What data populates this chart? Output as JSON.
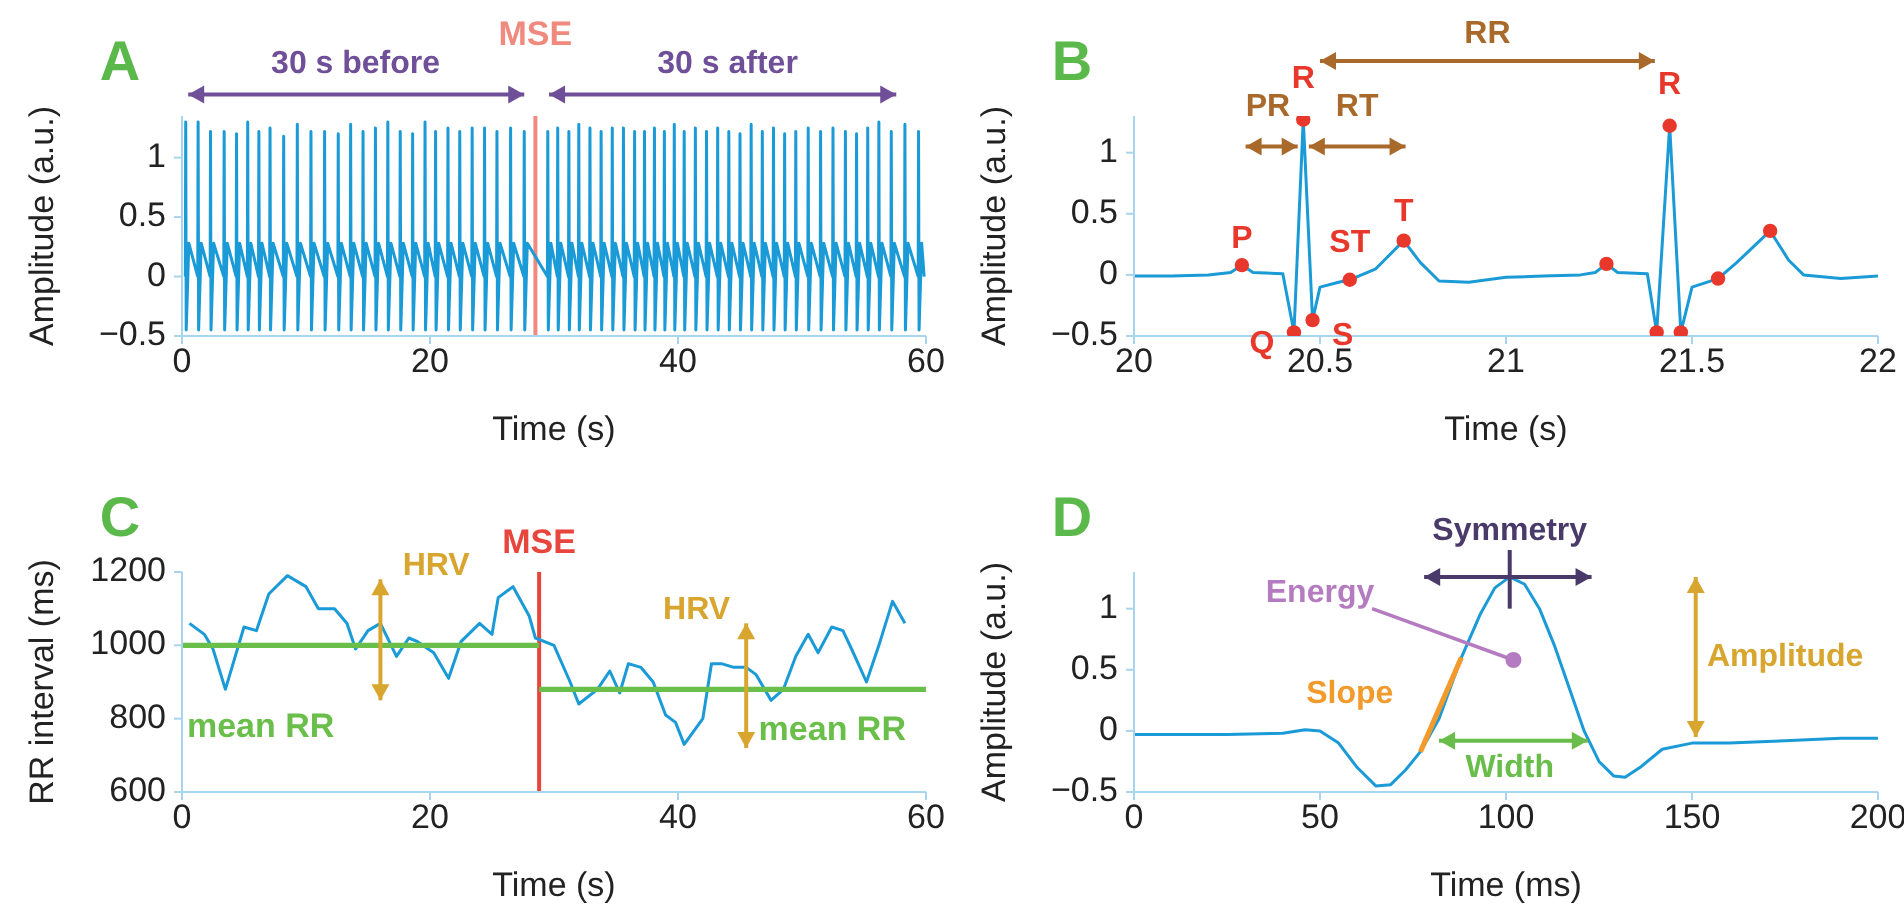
{
  "chart_data": [
    {
      "type": "line",
      "title": "A",
      "xlabel": "Time (s)",
      "ylabel": "Amplitude (a.u.)",
      "xlim": [
        0,
        60
      ],
      "ylim": [
        -0.5,
        1.35
      ],
      "xticks": [
        0,
        20,
        40,
        60
      ],
      "yticks": [
        -0.5,
        0,
        0.5,
        1
      ],
      "series": [
        {
          "color": "#1a9ad6",
          "x": [
            0.27,
            0.3,
            0.34,
            0.55,
            1.27,
            1.3,
            1.34,
            1.55,
            2.27,
            2.3,
            2.34,
            2.55,
            3.37,
            3.4,
            3.44,
            3.65,
            4.37,
            4.4,
            4.44,
            4.65,
            5.27,
            5.3,
            5.34,
            5.55,
            6.17,
            6.2,
            6.24,
            6.45,
            7.07,
            7.1,
            7.14,
            7.35,
            8.17,
            8.2,
            8.24,
            8.45,
            9.27,
            9.3,
            9.34,
            9.55,
            10.37,
            10.4,
            10.44,
            10.65,
            11.47,
            11.5,
            11.54,
            11.75,
            12.57,
            12.6,
            12.64,
            12.85,
            13.57,
            13.6,
            13.64,
            13.85,
            14.57,
            14.6,
            14.64,
            14.85,
            15.57,
            15.6,
            15.64,
            15.85,
            16.57,
            16.6,
            16.64,
            16.85,
            17.57,
            17.6,
            17.64,
            17.85,
            18.57,
            18.6,
            18.64,
            18.85,
            19.57,
            19.6,
            19.64,
            19.85,
            20.42,
            20.45,
            20.49,
            20.7,
            21.42,
            21.45,
            21.49,
            21.7,
            22.37,
            22.4,
            22.44,
            22.65,
            23.37,
            23.4,
            23.44,
            23.65,
            24.37,
            24.4,
            24.44,
            24.65,
            25.37,
            25.4,
            25.44,
            25.65,
            26.47,
            26.5,
            26.54,
            26.75,
            27.57,
            27.6,
            27.64,
            27.85,
            29.47,
            29.5,
            29.54,
            29.75,
            30.27,
            30.3,
            30.34,
            30.55,
            31.17,
            31.2,
            31.24,
            31.45,
            31.97,
            32,
            32.04,
            32.25,
            32.87,
            32.9,
            32.94,
            33.15,
            33.77,
            33.8,
            33.84,
            34.05,
            34.67,
            34.7,
            34.74,
            34.95,
            35.57,
            35.6,
            35.64,
            35.85,
            36.47,
            36.5,
            36.54,
            36.75,
            37.27,
            37.3,
            37.34,
            37.55,
            38.07,
            38.1,
            38.14,
            38.35,
            38.87,
            38.9,
            38.94,
            39.15,
            39.67,
            39.7,
            39.74,
            39.95,
            40.47,
            40.5,
            40.54,
            40.75,
            41.37,
            41.4,
            41.44,
            41.65,
            42.27,
            42.3,
            42.34,
            42.55,
            43.17,
            43.2,
            43.24,
            43.45,
            44.07,
            44.1,
            44.14,
            44.35,
            44.97,
            45,
            45.04,
            45.25,
            45.87,
            45.9,
            45.94,
            46.15,
            46.77,
            46.8,
            46.84,
            47.05,
            47.67,
            47.7,
            47.74,
            47.95,
            48.57,
            48.6,
            48.64,
            48.85,
            49.47,
            49.5,
            49.54,
            49.75,
            50.47,
            50.5,
            50.54,
            50.75,
            51.47,
            51.5,
            51.54,
            51.75,
            52.47,
            52.5,
            52.54,
            52.75,
            53.47,
            53.5,
            53.54,
            53.75,
            54.37,
            54.4,
            54.44,
            54.65,
            55.27,
            55.3,
            55.34,
            55.55,
            56.17,
            56.2,
            56.24,
            56.45,
            57.17,
            57.2,
            57.24,
            57.45,
            58.27,
            58.3,
            58.34,
            58.55,
            59.37,
            59.4,
            59.44,
            59.65,
            59.85
          ],
          "values": [
            0,
            1.3,
            -0.45,
            0.28,
            0,
            1.3,
            -0.45,
            0.28,
            0,
            1.22,
            -0.45,
            0.28,
            0,
            1.22,
            -0.45,
            0.28,
            0,
            1.2,
            -0.45,
            0.28,
            0,
            1.3,
            -0.45,
            0.28,
            0,
            1.22,
            -0.45,
            0.28,
            0,
            1.25,
            -0.45,
            0.28,
            0,
            1.18,
            -0.45,
            0.28,
            0,
            1.28,
            -0.45,
            0.28,
            0,
            1.22,
            -0.45,
            0.28,
            0,
            1.22,
            -0.45,
            0.28,
            0,
            1.2,
            -0.45,
            0.28,
            0,
            1.28,
            -0.45,
            0.28,
            0,
            1.22,
            -0.45,
            0.28,
            0,
            1.25,
            -0.45,
            0.28,
            0,
            1.3,
            -0.45,
            0.28,
            0,
            1.22,
            -0.45,
            0.28,
            0,
            1.2,
            -0.45,
            0.28,
            0,
            1.3,
            -0.45,
            0.28,
            0,
            1.22,
            -0.45,
            0.28,
            0,
            1.25,
            -0.45,
            0.28,
            0,
            1.22,
            -0.45,
            0.28,
            0,
            1.25,
            -0.45,
            0.28,
            0,
            1.25,
            -0.45,
            0.28,
            0,
            1.22,
            -0.45,
            0.28,
            0,
            1.25,
            -0.45,
            0.28,
            0,
            1.22,
            -0.45,
            0.28,
            0,
            1.22,
            -0.45,
            0.28,
            0,
            1.25,
            -0.45,
            0.28,
            0,
            1.22,
            -0.45,
            0.28,
            0,
            1.28,
            -0.45,
            0.28,
            0,
            1.25,
            -0.45,
            0.28,
            0,
            1.22,
            -0.45,
            0.28,
            0,
            1.25,
            -0.45,
            0.28,
            0,
            1.25,
            -0.45,
            0.28,
            0,
            1.22,
            -0.45,
            0.28,
            0,
            1.22,
            -0.45,
            0.28,
            0,
            1.25,
            -0.45,
            0.28,
            0,
            1.22,
            -0.45,
            0.28,
            0,
            1.28,
            -0.45,
            0.28,
            0,
            1.22,
            -0.45,
            0.28,
            0,
            1.25,
            -0.45,
            0.28,
            0,
            1.22,
            -0.45,
            0.28,
            0,
            1.25,
            -0.45,
            0.28,
            0,
            1.22,
            -0.45,
            0.28,
            0,
            1.2,
            -0.45,
            0.28,
            0,
            1.28,
            -0.45,
            0.28,
            0,
            1.22,
            -0.45,
            0.28,
            0,
            1.25,
            -0.45,
            0.28,
            0,
            1.2,
            -0.45,
            0.28,
            0,
            1.22,
            -0.45,
            0.28,
            0,
            1.25,
            -0.45,
            0.28,
            0,
            1.22,
            -0.45,
            0.28,
            0,
            1.25,
            -0.45,
            0.28,
            0,
            1.22,
            -0.45,
            0.28,
            0,
            1.2,
            -0.45,
            0.28,
            0,
            1.25,
            -0.45,
            0.28,
            0,
            1.3,
            -0.45,
            0.28,
            0,
            1.22,
            -0.45,
            0.28,
            0,
            1.28,
            -0.45,
            0.28,
            0,
            1.22,
            -0.45,
            0.28,
            0
          ]
        }
      ],
      "ref_lines": [
        {
          "axis": "x",
          "value": 28.5,
          "label": "MSE",
          "color": "#f08a7e"
        }
      ],
      "annotations": [
        "30 s before",
        "30 s after"
      ]
    },
    {
      "type": "line",
      "title": "B",
      "xlabel": "Time (s)",
      "ylabel": "Amplitude (a.u.)",
      "xlim": [
        20,
        22
      ],
      "ylim": [
        -0.5,
        1.3
      ],
      "xticks": [
        20,
        20.5,
        21,
        21.5,
        22
      ],
      "yticks": [
        -0.5,
        0,
        0.5,
        1
      ],
      "series": [
        {
          "color": "#1a9ad6",
          "x": [
            20,
            20.1,
            20.2,
            20.26,
            20.29,
            20.32,
            20.4,
            20.43,
            20.455,
            20.48,
            20.5,
            20.55,
            20.58,
            20.65,
            20.725,
            20.77,
            20.82,
            20.9,
            21,
            21.1,
            21.2,
            21.24,
            21.27,
            21.3,
            21.38,
            21.405,
            21.44,
            21.47,
            21.5,
            21.57,
            21.62,
            21.71,
            21.76,
            21.8,
            21.9,
            22
          ],
          "values": [
            -0.01,
            -0.01,
            0,
            0.02,
            0.08,
            0.02,
            0.01,
            -0.47,
            1.27,
            -0.37,
            -0.1,
            -0.06,
            -0.04,
            0.05,
            0.28,
            0.1,
            -0.05,
            -0.06,
            -0.02,
            -0.01,
            0,
            0.02,
            0.09,
            0.02,
            0.01,
            -0.47,
            1.22,
            -0.47,
            -0.1,
            -0.03,
            0.1,
            0.36,
            0.12,
            0,
            -0.03,
            -0.01
          ]
        },
        {
          "type": "scatter",
          "color": "#e8382c",
          "x": [
            20.29,
            20.43,
            20.455,
            20.48,
            20.58,
            20.725,
            21.27,
            21.405,
            21.44,
            21.47,
            21.57,
            21.71
          ],
          "values": [
            0.08,
            -0.47,
            1.27,
            -0.37,
            -0.04,
            0.28,
            0.09,
            -0.47,
            1.22,
            -0.47,
            -0.03,
            0.36
          ]
        }
      ],
      "annotations": [
        "PR",
        "RT",
        "RR",
        {
          "text": "P",
          "x": 20.29,
          "y": 0.08
        },
        {
          "text": "Q",
          "x": 20.43,
          "y": -0.47
        },
        {
          "text": "R",
          "x": 20.455,
          "y": 1.27
        },
        {
          "text": "S",
          "x": 20.48,
          "y": -0.37
        },
        {
          "text": "ST",
          "x": 20.58,
          "y": -0.04
        },
        {
          "text": "T",
          "x": 20.725,
          "y": 0.28
        },
        {
          "text": "R",
          "x": 21.44,
          "y": 1.22
        }
      ]
    },
    {
      "type": "line",
      "title": "C",
      "xlabel": "Time (s)",
      "ylabel": "RR interval (ms)",
      "xlim": [
        0,
        60
      ],
      "ylim": [
        600,
        1200
      ],
      "xticks": [
        0,
        20,
        40,
        60
      ],
      "yticks": [
        600,
        800,
        1000,
        1200
      ],
      "series": [
        {
          "color": "#1a9ad6",
          "x": [
            0.6,
            1.8,
            2.5,
            3.5,
            5,
            6,
            7,
            8.5,
            10,
            11,
            12.3,
            13.3,
            14,
            15,
            16,
            17.3,
            18.3,
            19,
            20.3,
            21.5,
            22.5,
            24,
            25,
            25.5,
            26.7,
            28,
            28.5,
            30,
            31.3,
            32,
            33.5,
            34.5,
            35.3,
            36,
            37,
            38,
            39,
            39.8,
            40.5,
            42,
            42.7,
            43.5,
            44.5,
            45.5,
            46.3,
            47.5,
            48.5,
            49.5,
            50.5,
            51.3,
            52.4,
            53.3,
            54,
            55.2,
            56.2,
            57.3,
            58.3
          ],
          "values": [
            1060,
            1030,
            990,
            880,
            1050,
            1040,
            1140,
            1190,
            1160,
            1100,
            1100,
            1060,
            990,
            1040,
            1060,
            970,
            1020,
            1010,
            980,
            910,
            1010,
            1060,
            1030,
            1130,
            1160,
            1080,
            1020,
            1000,
            900,
            840,
            880,
            930,
            870,
            950,
            940,
            900,
            810,
            790,
            730,
            800,
            950,
            950,
            940,
            940,
            920,
            850,
            880,
            970,
            1030,
            980,
            1050,
            1040,
            990,
            900,
            1000,
            1120,
            1060
          ]
        },
        {
          "name": "mean RR",
          "color": "#6abf4b",
          "x": [
            0,
            28.8
          ],
          "values": [
            1000,
            1000
          ]
        },
        {
          "name": "mean RR",
          "color": "#6abf4b",
          "x": [
            28.8,
            60
          ],
          "values": [
            880,
            880
          ]
        }
      ],
      "ref_lines": [
        {
          "axis": "x",
          "value": 28.8,
          "label": "MSE",
          "color": "#e8463c"
        }
      ],
      "annotations": [
        "HRV",
        "HRV"
      ]
    },
    {
      "type": "line",
      "title": "D",
      "xlabel": "Time (ms)",
      "ylabel": "Amplitude (a.u.)",
      "xlim": [
        0,
        200
      ],
      "ylim": [
        -0.5,
        1.3
      ],
      "xticks": [
        0,
        50,
        100,
        150,
        200
      ],
      "yticks": [
        -0.5,
        0,
        0.5,
        1
      ],
      "series": [
        {
          "color": "#1a9ad6",
          "x": [
            0,
            25,
            40,
            46,
            50,
            55,
            60,
            65,
            69,
            73,
            77,
            82,
            88,
            93,
            97,
            101,
            105,
            109,
            113,
            117,
            121,
            125,
            129,
            132,
            136,
            142,
            150,
            160,
            175,
            190,
            200
          ],
          "values": [
            -0.03,
            -0.03,
            -0.02,
            0.01,
            0,
            -0.1,
            -0.3,
            -0.45,
            -0.44,
            -0.32,
            -0.17,
            0.1,
            0.6,
            0.95,
            1.17,
            1.26,
            1.2,
            1.0,
            0.7,
            0.35,
            0,
            -0.25,
            -0.37,
            -0.38,
            -0.3,
            -0.15,
            -0.1,
            -0.1,
            -0.08,
            -0.06,
            -0.06
          ]
        },
        {
          "color": "#f39a2c",
          "x": [
            77,
            88
          ],
          "values": [
            -0.17,
            0.6
          ]
        }
      ],
      "annotations": [
        "Symmetry",
        "Energy",
        "Slope",
        "Width",
        "Amplitude"
      ]
    }
  ]
}
